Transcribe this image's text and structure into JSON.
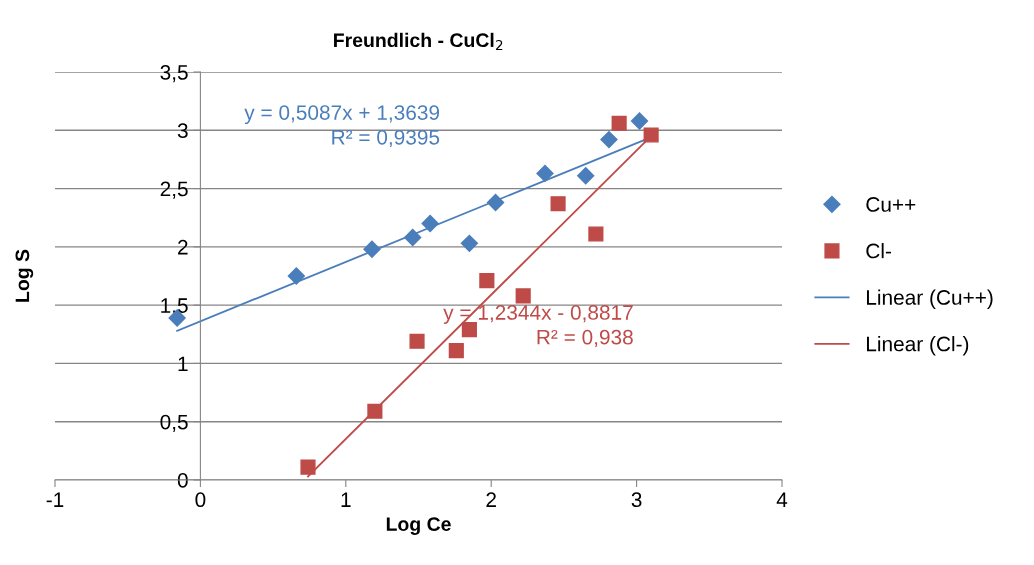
{
  "chart_data": {
    "type": "scatter",
    "title": "Freundlich - CuCl$_{2}$",
    "xlabel": "Log Ce",
    "ylabel": "Log S",
    "xlim": [
      -1,
      4
    ],
    "xticks": [
      -1,
      0,
      1,
      2,
      3,
      4
    ],
    "ylim": [
      0,
      3.5
    ],
    "yticks": [
      0,
      {
        "value": 0.5,
        "label": "0,5"
      },
      1,
      {
        "value": 1.5,
        "label": "1,5"
      },
      2,
      {
        "value": 2.5,
        "label": "2,5"
      },
      3,
      {
        "value": 3.5,
        "label": "3,5"
      }
    ],
    "grid": "y",
    "legend": "right",
    "series": [
      {
        "name": "Cu++",
        "marker": "diamond",
        "color": "#4a7ebb",
        "x": [
          -0.16,
          0.66,
          1.18,
          1.46,
          1.58,
          1.85,
          2.03,
          2.37,
          2.65,
          2.81,
          3.02
        ],
        "values": [
          1.39,
          1.75,
          1.98,
          2.08,
          2.2,
          2.03,
          2.38,
          2.63,
          2.61,
          2.92,
          3.08
        ]
      },
      {
        "name": "Cl-",
        "marker": "square",
        "color": "#be4b48",
        "x": [
          0.74,
          1.2,
          1.49,
          1.76,
          1.85,
          1.97,
          2.22,
          2.46,
          2.72,
          2.88,
          3.1
        ],
        "values": [
          0.11,
          0.59,
          1.19,
          1.11,
          1.29,
          1.71,
          1.58,
          2.37,
          2.11,
          3.06,
          2.96
        ]
      },
      {
        "name": "Linear (Cu++)",
        "type": "line",
        "marker": "none",
        "color": "#4a7ebb",
        "x": [
          -0.16,
          3.1
        ],
        "values": [
          1.28,
          2.94
        ]
      },
      {
        "name": "Linear (Cl-)",
        "type": "line",
        "marker": "none",
        "color": "#be4b48",
        "x": [
          0.74,
          3.1
        ],
        "values": [
          0.03,
          2.95
        ]
      }
    ],
    "annotations": [
      "y = 0,5087x + 1,3639\nR² = 0,9395",
      "y = 1,2344x - 0,8817\nR² = 0,938"
    ]
  }
}
